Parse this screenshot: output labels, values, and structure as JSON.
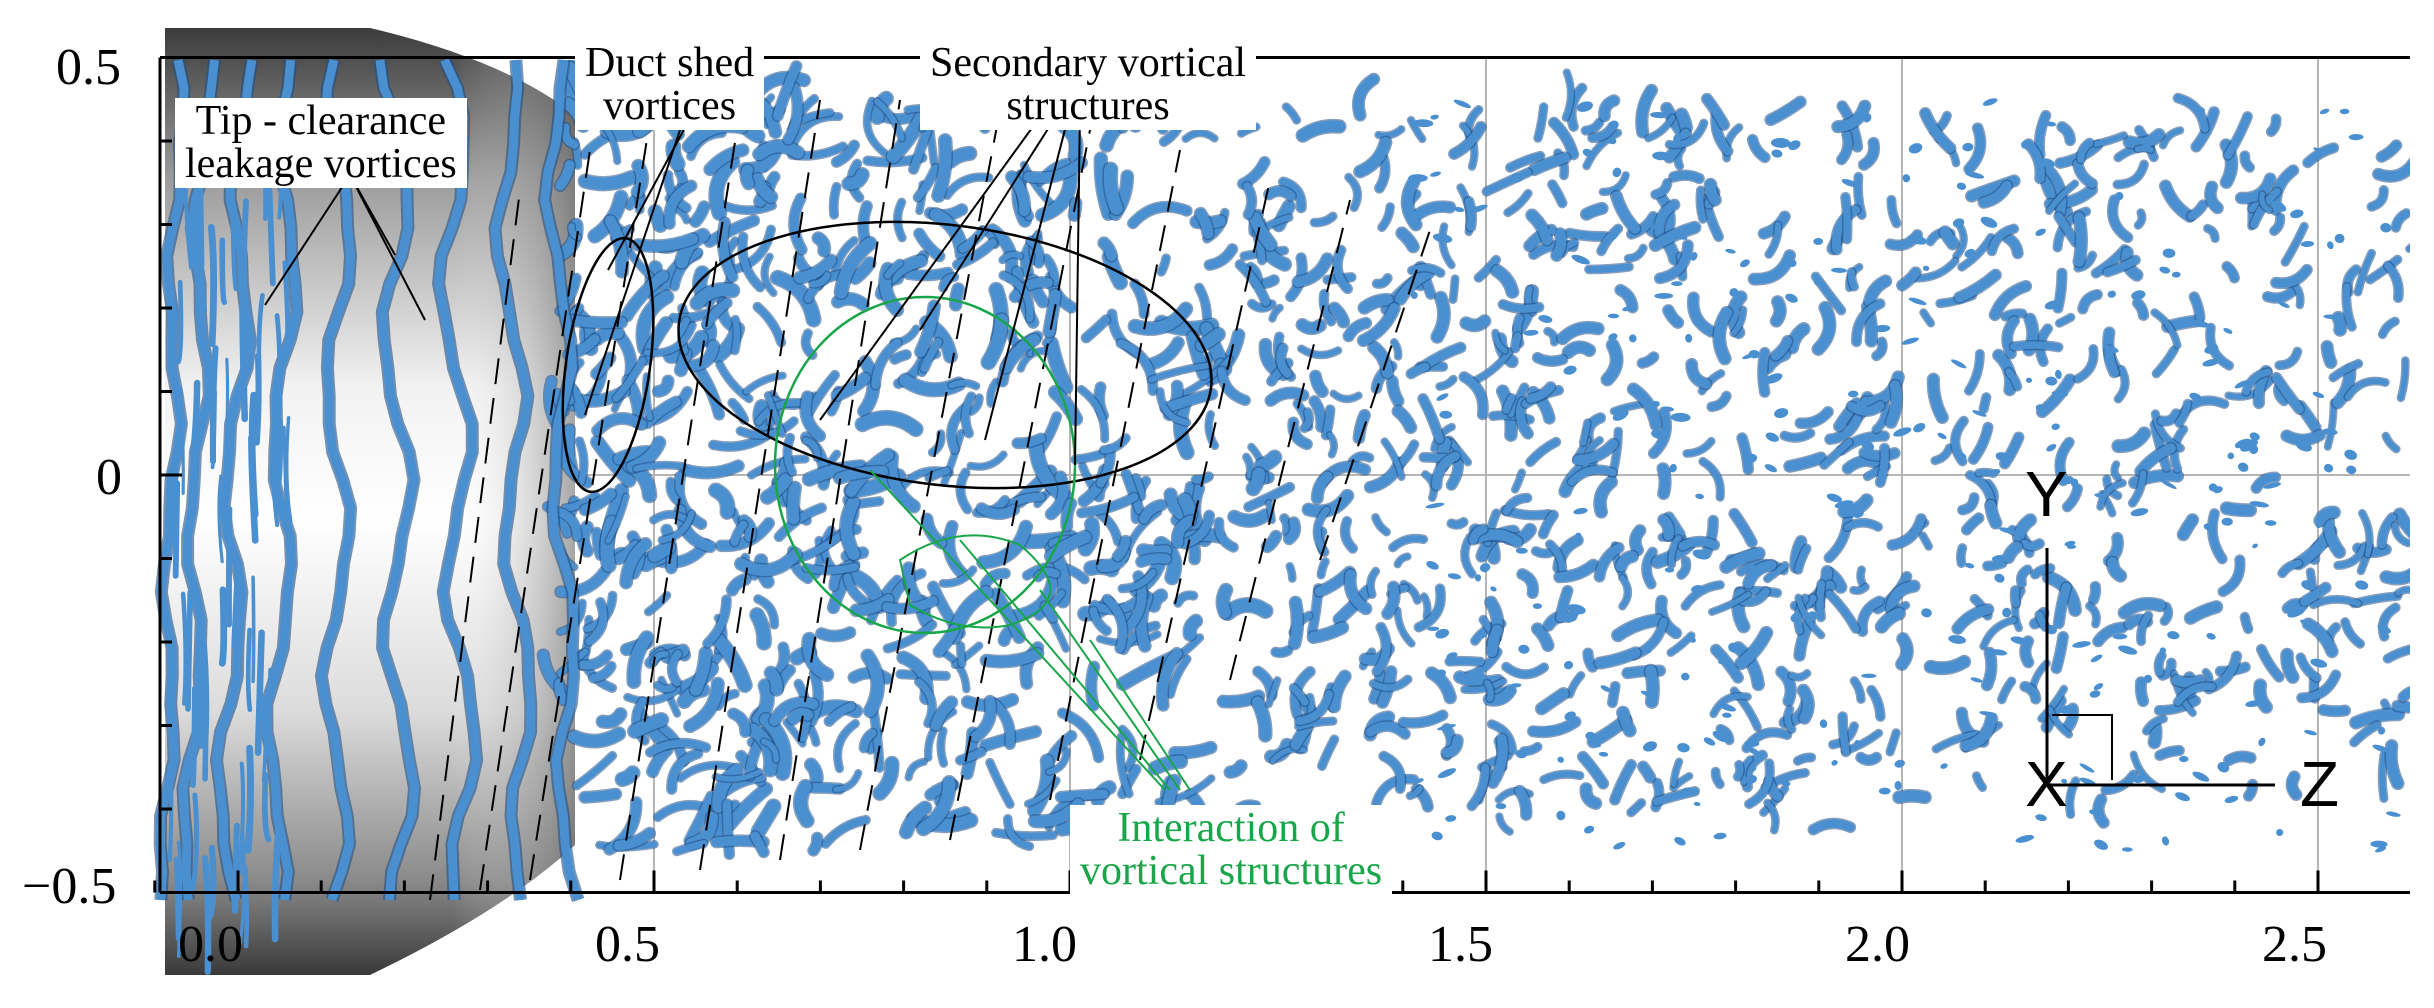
{
  "axes": {
    "y_ticks": [
      {
        "value": 0.5,
        "label": "0.5"
      },
      {
        "value": 0,
        "label": "0"
      },
      {
        "value": -0.5,
        "label": "−0.5"
      }
    ],
    "x_ticks": [
      {
        "value": 0.0,
        "label": "0.0"
      },
      {
        "value": 0.5,
        "label": "0.5"
      },
      {
        "value": 1.0,
        "label": "1.0"
      },
      {
        "value": 1.5,
        "label": "1.5"
      },
      {
        "value": 2.0,
        "label": "2.0"
      },
      {
        "value": 2.5,
        "label": "2.5"
      }
    ],
    "xlim": [
      -0.15,
      2.6
    ],
    "ylim": [
      -0.5,
      0.5
    ]
  },
  "annotations": {
    "tip_clearance": [
      "Tip - clearance",
      "leakage vortices"
    ],
    "duct_shed": [
      "Duct shed",
      "vortices"
    ],
    "secondary": [
      "Secondary vortical",
      "structures"
    ],
    "interaction": [
      "Interaction of",
      "vortical structures"
    ]
  },
  "triad": {
    "y_label": "Y",
    "x_label": "X",
    "z_label": "Z"
  },
  "colors": {
    "vortex": "#4a90d0",
    "vortex_dark": "#1f4f86",
    "annotation_green": "#19a64a"
  }
}
